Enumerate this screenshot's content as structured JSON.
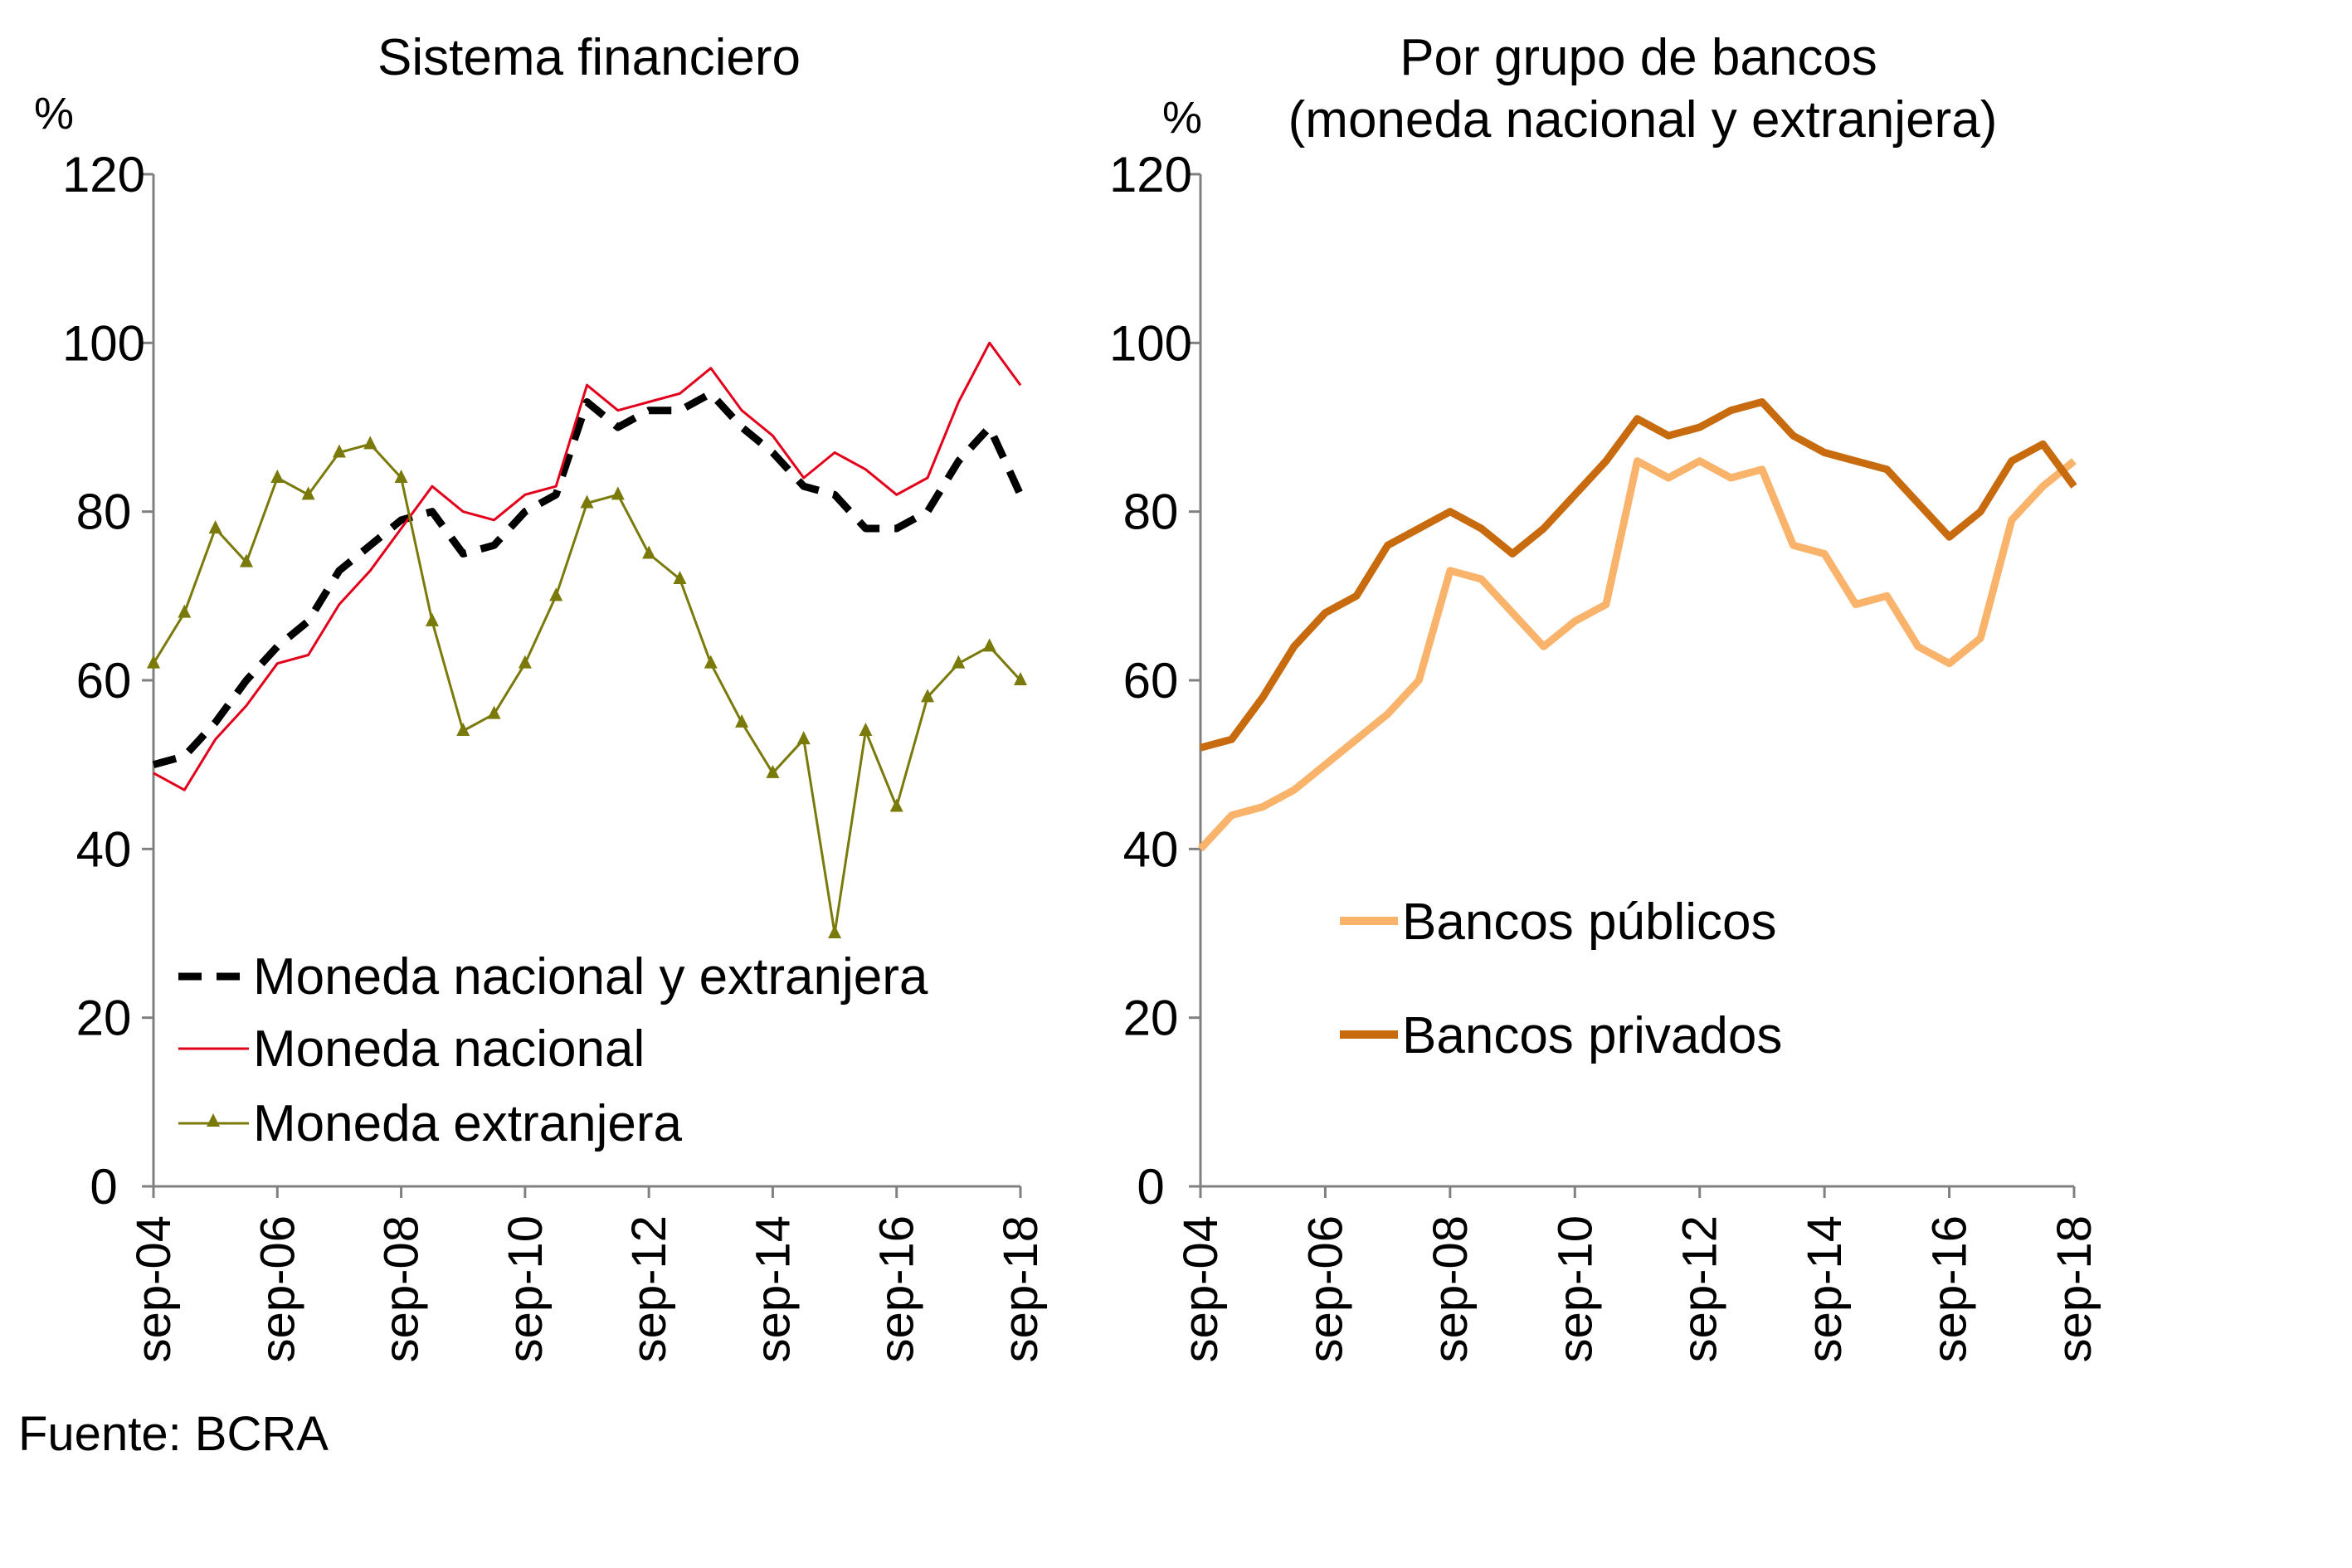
{
  "source": "Fuente: BCRA",
  "chart_data": [
    {
      "type": "line",
      "title": "Sistema financiero",
      "ylabel": "%",
      "ylim": [
        0,
        120
      ],
      "yticks": [
        0,
        20,
        40,
        60,
        80,
        100,
        120
      ],
      "x_tick_labels": [
        "sep-04",
        "sep-06",
        "sep-08",
        "sep-10",
        "sep-12",
        "sep-14",
        "sep-16",
        "sep-18"
      ],
      "legend_position": "bottom-left",
      "x": [
        "sep-04",
        "mar-05",
        "sep-05",
        "mar-06",
        "sep-06",
        "mar-07",
        "sep-07",
        "mar-08",
        "sep-08",
        "mar-09",
        "sep-09",
        "mar-10",
        "sep-10",
        "mar-11",
        "sep-11",
        "mar-12",
        "sep-12",
        "mar-13",
        "sep-13",
        "mar-14",
        "sep-14",
        "mar-15",
        "sep-15",
        "mar-16",
        "sep-16",
        "mar-17",
        "sep-17",
        "mar-18",
        "sep-18"
      ],
      "series": [
        {
          "name": "Moneda nacional y extranjera",
          "color": "#000000",
          "style": "dashed",
          "values": [
            50,
            51,
            55,
            60,
            64,
            67,
            73,
            76,
            79,
            80,
            75,
            76,
            80,
            82,
            93,
            90,
            92,
            92,
            94,
            90,
            87,
            83,
            82,
            78,
            78,
            80,
            86,
            90,
            82
          ]
        },
        {
          "name": "Moneda nacional",
          "color": "#e3001b",
          "style": "solid",
          "values": [
            49,
            47,
            53,
            57,
            62,
            63,
            69,
            73,
            78,
            83,
            80,
            79,
            82,
            83,
            95,
            92,
            93,
            94,
            97,
            92,
            89,
            84,
            87,
            85,
            82,
            84,
            93,
            100,
            95
          ]
        },
        {
          "name": "Moneda extranjera",
          "color": "#7a7a0a",
          "style": "solid-triangles",
          "values": [
            62,
            68,
            78,
            74,
            84,
            82,
            87,
            88,
            84,
            67,
            54,
            56,
            62,
            70,
            81,
            82,
            75,
            72,
            62,
            55,
            49,
            53,
            30,
            54,
            45,
            58,
            62,
            64,
            60
          ]
        }
      ]
    },
    {
      "type": "line",
      "title": "Por grupo de bancos",
      "subtitle": "(moneda nacional y extranjera)",
      "ylabel": "%",
      "ylim": [
        0,
        120
      ],
      "yticks": [
        0,
        20,
        40,
        60,
        80,
        100,
        120
      ],
      "x_tick_labels": [
        "sep-04",
        "sep-06",
        "sep-08",
        "sep-10",
        "sep-12",
        "sep-14",
        "sep-16",
        "sep-18"
      ],
      "legend_position": "center",
      "x": [
        "sep-04",
        "mar-05",
        "sep-05",
        "mar-06",
        "sep-06",
        "mar-07",
        "sep-07",
        "mar-08",
        "sep-08",
        "mar-09",
        "sep-09",
        "mar-10",
        "sep-10",
        "mar-11",
        "sep-11",
        "mar-12",
        "sep-12",
        "mar-13",
        "sep-13",
        "mar-14",
        "sep-14",
        "mar-15",
        "sep-15",
        "mar-16",
        "sep-16",
        "mar-17",
        "sep-17",
        "mar-18",
        "sep-18"
      ],
      "series": [
        {
          "name": "Bancos públicos",
          "color": "#f9b36b",
          "style": "solid",
          "values": [
            40,
            44,
            45,
            47,
            50,
            53,
            56,
            60,
            73,
            72,
            68,
            64,
            67,
            69,
            86,
            84,
            86,
            84,
            85,
            76,
            75,
            69,
            70,
            64,
            62,
            65,
            79,
            83,
            86
          ]
        },
        {
          "name": "Bancos privados",
          "color": "#c86a0e",
          "style": "solid",
          "values": [
            52,
            53,
            58,
            64,
            68,
            70,
            76,
            78,
            80,
            78,
            75,
            78,
            82,
            86,
            91,
            89,
            90,
            92,
            93,
            89,
            87,
            86,
            85,
            81,
            77,
            80,
            86,
            88,
            83
          ]
        }
      ]
    }
  ]
}
